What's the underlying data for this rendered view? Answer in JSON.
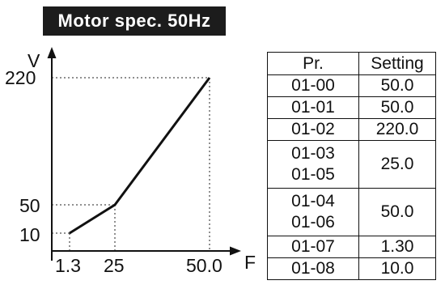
{
  "title": "Motor spec. 50Hz",
  "graph": {
    "y_axis_label": "V",
    "x_axis_label": "F",
    "y_ticks": [
      "220",
      "50",
      "10"
    ],
    "x_ticks": [
      "1.3",
      "25",
      "50.0"
    ],
    "curve_points": [
      {
        "F": 1.3,
        "V": 10
      },
      {
        "F": 25,
        "V": 50
      },
      {
        "F": 50.0,
        "V": 220
      }
    ]
  },
  "table": {
    "headers": [
      "Pr.",
      "Setting"
    ],
    "rows": [
      {
        "pr": "01-00",
        "setting": "50.0"
      },
      {
        "pr": "01-01",
        "setting": "50.0"
      },
      {
        "pr": "01-02",
        "setting": "220.0"
      },
      {
        "pr_lines": [
          "01-03",
          "01-05"
        ],
        "setting": "25.0"
      },
      {
        "pr_lines": [
          "01-04",
          "01-06"
        ],
        "setting": "50.0"
      },
      {
        "pr": "01-07",
        "setting": "1.30"
      },
      {
        "pr": "01-08",
        "setting": "10.0"
      }
    ]
  }
}
